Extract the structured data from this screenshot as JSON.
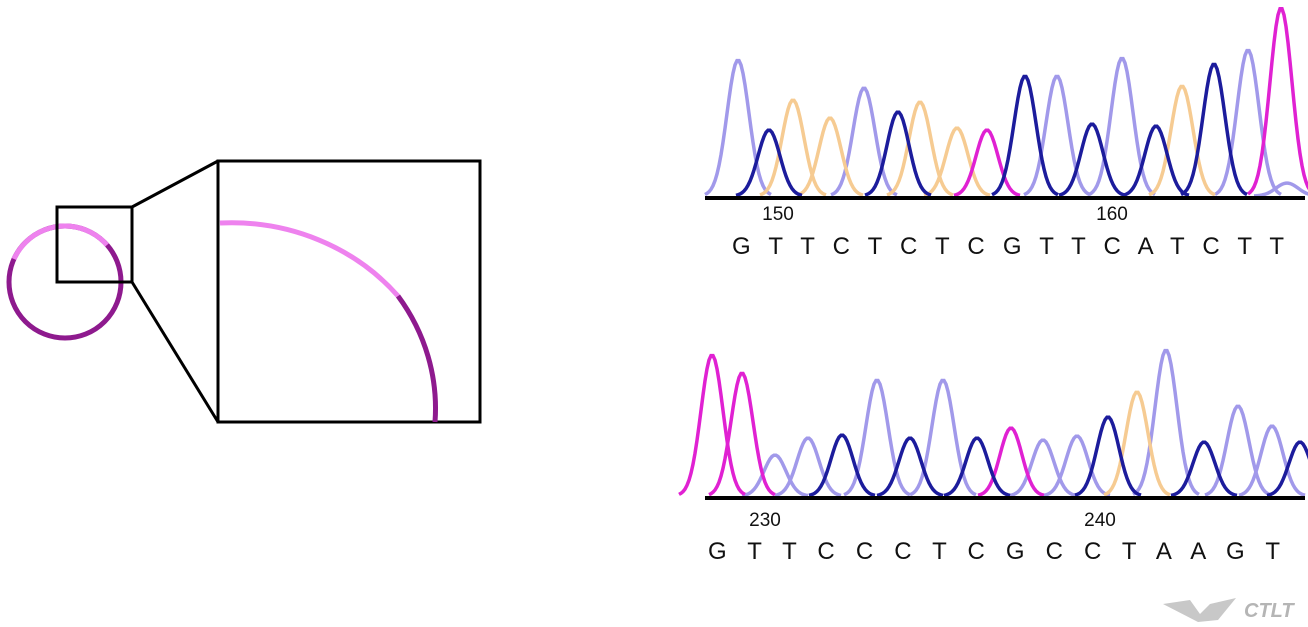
{
  "traces": [
    {
      "ticks": [
        "150",
        "160"
      ],
      "sequence": "G T T C T C T C G T T C A T C T T"
    },
    {
      "ticks": [
        "230",
        "240"
      ],
      "sequence": "G T T C C C T C G C C T A A G T"
    }
  ],
  "logo": "CTLT"
}
